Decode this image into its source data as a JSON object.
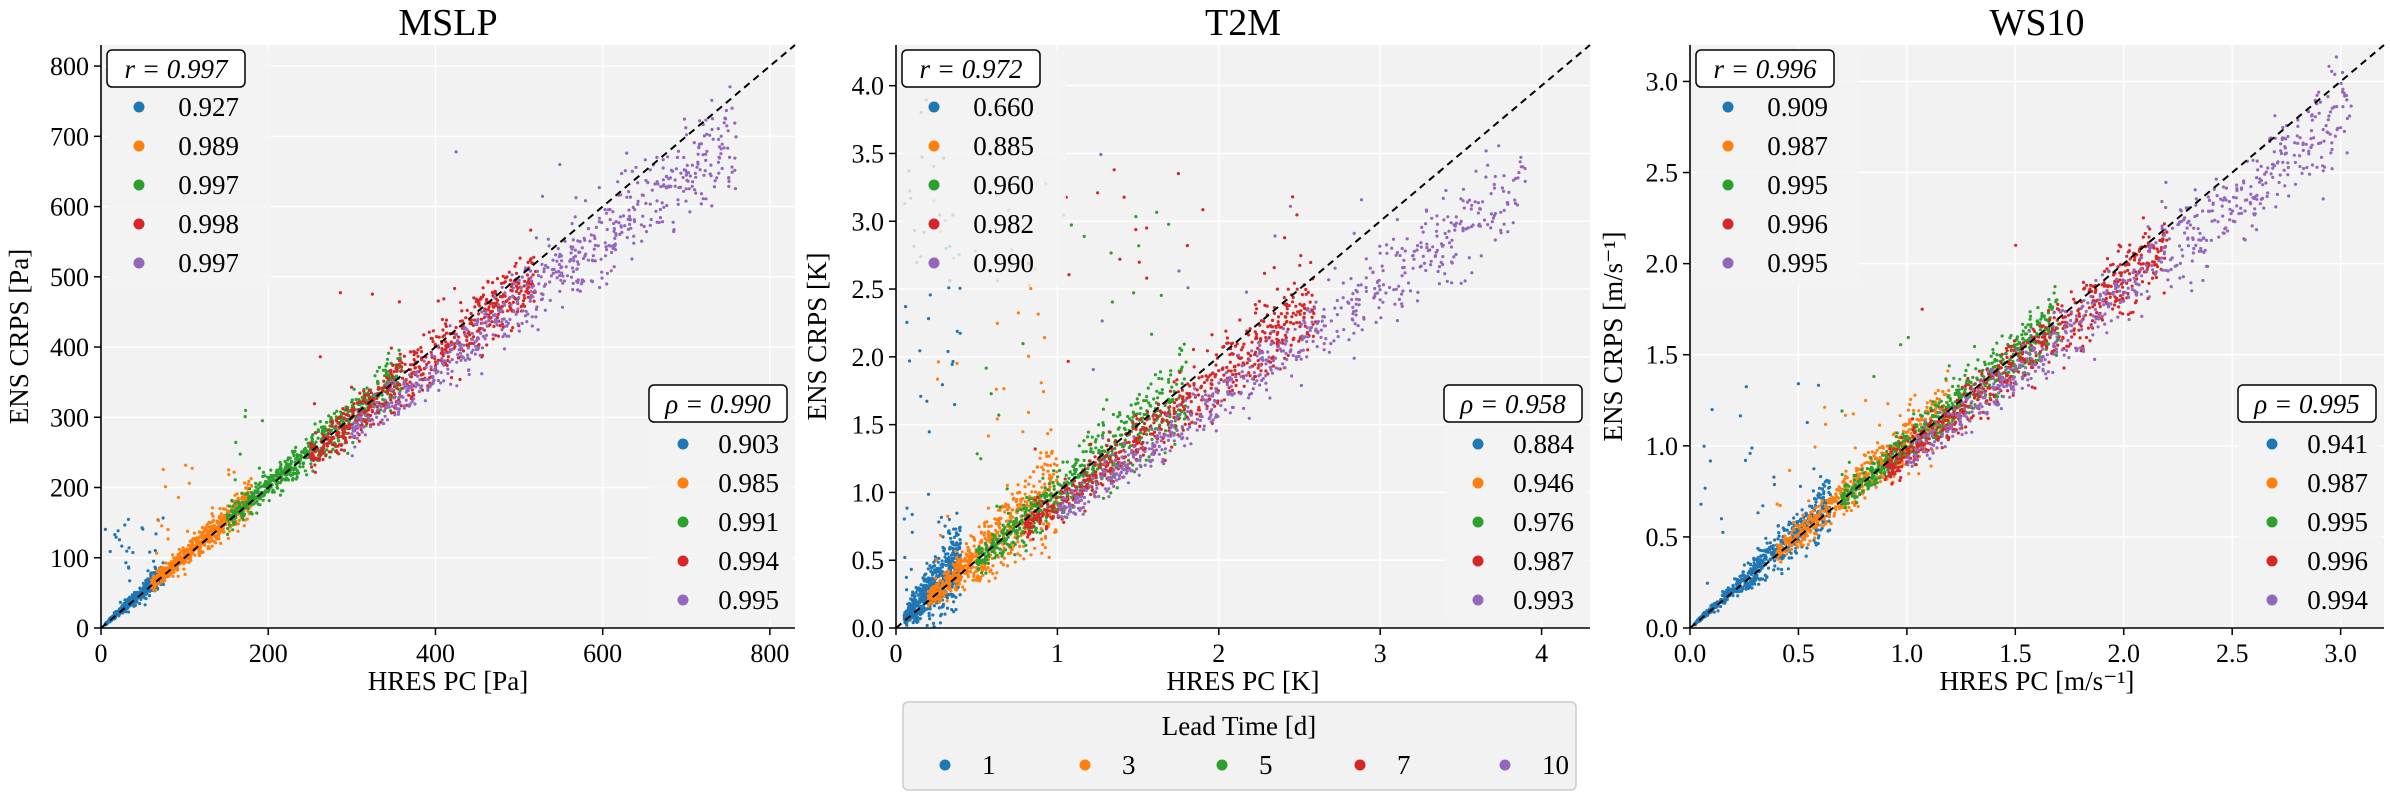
{
  "colors": {
    "lead_1": "#1f77b4",
    "lead_3": "#ff7f0e",
    "lead_5": "#2ca02c",
    "lead_7": "#d62728",
    "lead_10": "#9467bd",
    "panel_bg": "#f2f2f2",
    "grid": "#ffffff",
    "diagonal": "#000000"
  },
  "legend": {
    "title": "Lead Time [d]",
    "items": [
      "1",
      "3",
      "5",
      "7",
      "10"
    ]
  },
  "chart_data": [
    {
      "type": "scatter",
      "title": "MSLP",
      "xlabel": "HRES PC [Pa]",
      "ylabel": "ENS CRPS [Pa]",
      "xlim": [
        0,
        830
      ],
      "ylim": [
        0,
        830
      ],
      "xticks": [
        "0",
        "200",
        "400",
        "600",
        "800"
      ],
      "xtick_values": [
        0,
        200,
        400,
        600,
        800
      ],
      "yticks": [
        "0",
        "100",
        "200",
        "300",
        "400",
        "500",
        "600",
        "700",
        "800"
      ],
      "ytick_values": [
        0,
        100,
        200,
        300,
        400,
        500,
        600,
        700,
        800
      ],
      "pearson_label": "r = 0.997",
      "pearson": [
        "0.927",
        "0.989",
        "0.997",
        "0.998",
        "0.997"
      ],
      "spearman_label": "ρ = 0.990",
      "spearman": [
        "0.903",
        "0.985",
        "0.991",
        "0.994",
        "0.995"
      ],
      "series": [
        {
          "name": "1",
          "x_range": [
            5,
            75
          ],
          "slope": 1.05,
          "spread": 0.1,
          "outliers": 0.6,
          "outlier_max": 160
        },
        {
          "name": "3",
          "x_range": [
            60,
            180
          ],
          "slope": 1.03,
          "spread": 0.07,
          "outliers": 0.3,
          "outlier_max": 250
        },
        {
          "name": "5",
          "x_range": [
            150,
            360
          ],
          "slope": 1.01,
          "spread": 0.05,
          "outliers": 0.25,
          "outlier_max": 320
        },
        {
          "name": "7",
          "x_range": [
            250,
            520
          ],
          "slope": 0.97,
          "spread": 0.05,
          "outliers": 0.2,
          "outlier_max": 500
        },
        {
          "name": "10",
          "x_range": [
            300,
            760
          ],
          "slope": 0.92,
          "spread": 0.05,
          "outliers": 0.15,
          "outlier_max": 700
        }
      ]
    },
    {
      "type": "scatter",
      "title": "T2M",
      "xlabel": "HRES PC [K]",
      "ylabel": "ENS CRPS [K]",
      "xlim": [
        0,
        4.3
      ],
      "ylim": [
        0,
        4.3
      ],
      "xticks": [
        "0",
        "1",
        "2",
        "3",
        "4"
      ],
      "xtick_values": [
        0,
        1,
        2,
        3,
        4
      ],
      "yticks": [
        "0.0",
        "0.5",
        "1.0",
        "1.5",
        "2.0",
        "2.5",
        "3.0",
        "3.5",
        "4.0"
      ],
      "ytick_values": [
        0,
        0.5,
        1.0,
        1.5,
        2.0,
        2.5,
        3.0,
        3.5,
        4.0
      ],
      "pearson_label": "r = 0.972",
      "pearson": [
        "0.660",
        "0.885",
        "0.960",
        "0.982",
        "0.990"
      ],
      "spearman_label": "ρ = 0.958",
      "spearman": [
        "0.884",
        "0.946",
        "0.976",
        "0.987",
        "0.993"
      ],
      "series": [
        {
          "name": "1",
          "x_range": [
            0.05,
            0.4
          ],
          "slope": 1.3,
          "spread": 0.35,
          "outliers": 1.0,
          "outlier_max": 3.9
        },
        {
          "name": "3",
          "x_range": [
            0.2,
            1.0
          ],
          "slope": 1.05,
          "spread": 0.18,
          "outliers": 0.8,
          "outlier_max": 3.5
        },
        {
          "name": "5",
          "x_range": [
            0.5,
            1.8
          ],
          "slope": 0.98,
          "spread": 0.1,
          "outliers": 0.6,
          "outlier_max": 3.1
        },
        {
          "name": "7",
          "x_range": [
            0.8,
            2.6
          ],
          "slope": 0.92,
          "spread": 0.07,
          "outliers": 0.45,
          "outlier_max": 3.4
        },
        {
          "name": "10",
          "x_range": [
            1.0,
            3.9
          ],
          "slope": 0.84,
          "spread": 0.06,
          "outliers": 0.35,
          "outlier_max": 3.5
        }
      ]
    },
    {
      "type": "scatter",
      "title": "WS10",
      "xlabel": "HRES PC [m/s⁻¹]",
      "ylabel": "ENS CRPS [m/s⁻¹]",
      "xlim": [
        0,
        3.2
      ],
      "ylim": [
        0,
        3.2
      ],
      "xticks": [
        "0.0",
        "0.5",
        "1.0",
        "1.5",
        "2.0",
        "2.5",
        "3.0"
      ],
      "xtick_values": [
        0,
        0.5,
        1.0,
        1.5,
        2.0,
        2.5,
        3.0
      ],
      "yticks": [
        "0.0",
        "0.5",
        "1.0",
        "1.5",
        "2.0",
        "2.5",
        "3.0"
      ],
      "ytick_values": [
        0,
        0.5,
        1.0,
        1.5,
        2.0,
        2.5,
        3.0
      ],
      "pearson_label": "r = 0.996",
      "pearson": [
        "0.909",
        "0.987",
        "0.995",
        "0.996",
        "0.995"
      ],
      "spearman_label": "ρ = 0.995",
      "spearman": [
        "0.941",
        "0.987",
        "0.995",
        "0.996",
        "0.994"
      ],
      "series": [
        {
          "name": "1",
          "x_range": [
            0.02,
            0.65
          ],
          "slope": 1.06,
          "spread": 0.12,
          "outliers": 0.5,
          "outlier_max": 1.4
        },
        {
          "name": "3",
          "x_range": [
            0.4,
            1.2
          ],
          "slope": 1.02,
          "spread": 0.07,
          "outliers": 0.3,
          "outlier_max": 1.3
        },
        {
          "name": "5",
          "x_range": [
            0.7,
            1.7
          ],
          "slope": 1.0,
          "spread": 0.05,
          "outliers": 0.2,
          "outlier_max": 1.6
        },
        {
          "name": "7",
          "x_range": [
            0.9,
            2.2
          ],
          "slope": 0.96,
          "spread": 0.05,
          "outliers": 0.15,
          "outlier_max": 2.2
        },
        {
          "name": "10",
          "x_range": [
            1.0,
            3.05
          ],
          "slope": 0.93,
          "spread": 0.05,
          "outliers": 0.1,
          "outlier_max": 3.0
        }
      ]
    }
  ]
}
